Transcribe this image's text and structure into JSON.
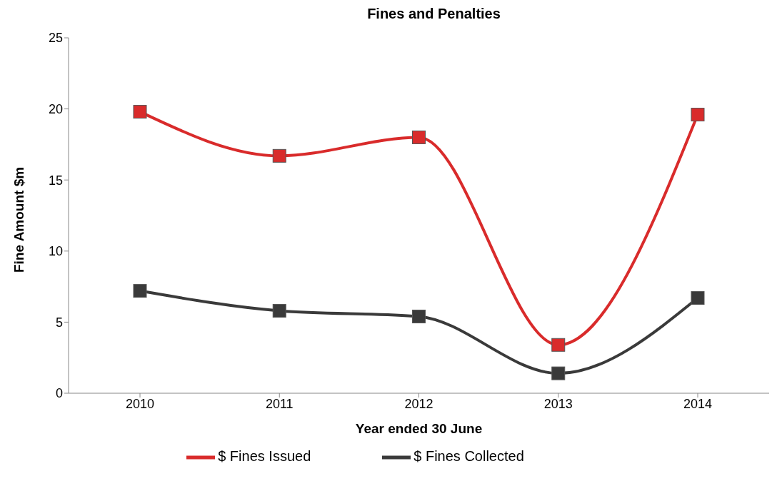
{
  "chart_data": {
    "type": "line",
    "title": "Fines and Penalties",
    "xlabel": "Year ended 30 June",
    "ylabel": "Fine Amount  $m",
    "categories": [
      "2010",
      "2011",
      "2012",
      "2013",
      "2014"
    ],
    "series": [
      {
        "name": "$ Fines Issued",
        "color": "#d92b2b",
        "values": [
          19.8,
          16.7,
          18.0,
          3.4,
          19.6
        ]
      },
      {
        "name": "$ Fines Collected",
        "color": "#3a3a3a",
        "values": [
          7.2,
          5.8,
          5.4,
          1.4,
          6.7
        ]
      }
    ],
    "ylim": [
      0,
      25
    ],
    "yticks": [
      0,
      5,
      10,
      15,
      20,
      25
    ],
    "legend": "bottom",
    "marker": "square",
    "line_style": "solid"
  }
}
